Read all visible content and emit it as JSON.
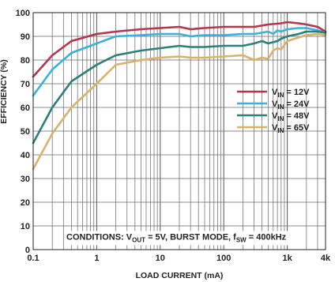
{
  "chart_data": {
    "type": "line",
    "xlabel": "LOAD CURRENT (mA)",
    "ylabel": "EFFICIENCY (%)",
    "x_scale": "log",
    "xlim": [
      0.1,
      4000
    ],
    "ylim": [
      0,
      100
    ],
    "x_ticks": [
      0.1,
      1,
      10,
      100,
      1000,
      4000
    ],
    "x_tick_labels": [
      "0.1",
      "1",
      "10",
      "100",
      "1k",
      "4k"
    ],
    "y_ticks": [
      0,
      10,
      20,
      30,
      40,
      50,
      60,
      70,
      80,
      90,
      100
    ],
    "y_tick_labels": [
      "0",
      "10",
      "20",
      "30",
      "40",
      "50",
      "60",
      "70",
      "80",
      "90",
      "100"
    ],
    "grid": true,
    "legend_position": "right",
    "annotation": {
      "prefix": "CONDITIONS: V",
      "sub1": "OUT",
      "mid": " = 5V, BURST MODE, f",
      "sub2": "SW",
      "suffix": " = 400kHz"
    },
    "series": [
      {
        "name": "VIN = 12V",
        "legend_main": "V",
        "legend_sub": "IN",
        "legend_value": " = 12V",
        "color": "#b5344f",
        "x": [
          0.1,
          0.2,
          0.4,
          1,
          2,
          5,
          10,
          20,
          30,
          50,
          100,
          200,
          300,
          500,
          800,
          1000,
          1500,
          2000,
          3000,
          4000
        ],
        "y": [
          73,
          82,
          88,
          91,
          92,
          93,
          93.5,
          94,
          93,
          93.5,
          94,
          94,
          94,
          95,
          95.5,
          96,
          95.5,
          95,
          94,
          92
        ]
      },
      {
        "name": "VIN = 24V",
        "legend_main": "V",
        "legend_sub": "IN",
        "legend_value": " = 24V",
        "color": "#3ab0dc",
        "x": [
          0.1,
          0.2,
          0.4,
          1,
          2,
          5,
          10,
          20,
          30,
          50,
          100,
          200,
          300,
          500,
          600,
          700,
          800,
          1000,
          1500,
          2000,
          3000,
          4000
        ],
        "y": [
          65,
          76,
          83,
          87,
          90,
          90.5,
          91,
          91,
          90,
          90.5,
          90.5,
          91,
          91,
          92,
          91,
          92.5,
          92,
          93,
          93.5,
          93.5,
          92.5,
          91.5
        ]
      },
      {
        "name": "VIN = 48V",
        "legend_main": "V",
        "legend_sub": "IN",
        "legend_value": " = 48V",
        "color": "#2c7f7a",
        "x": [
          0.1,
          0.2,
          0.4,
          1,
          2,
          5,
          10,
          20,
          30,
          50,
          100,
          200,
          300,
          400,
          500,
          700,
          800,
          1000,
          1500,
          2000,
          3000,
          4000
        ],
        "y": [
          45,
          60,
          71,
          78,
          82,
          84,
          85,
          86,
          85.5,
          85.5,
          86,
          86,
          87,
          88,
          87,
          88,
          89,
          90,
          91,
          92,
          92,
          91.5
        ]
      },
      {
        "name": "VIN = 65V",
        "legend_main": "V",
        "legend_sub": "IN",
        "legend_value": " = 65V",
        "color": "#d9b16d",
        "x": [
          0.1,
          0.2,
          0.4,
          1,
          2,
          5,
          10,
          20,
          30,
          50,
          100,
          200,
          300,
          400,
          500,
          600,
          700,
          800,
          1000,
          1500,
          2000,
          3000,
          4000
        ],
        "y": [
          34,
          49,
          60,
          70,
          78,
          80,
          81,
          81.5,
          81,
          81,
          81.5,
          82,
          80,
          81,
          80.5,
          84,
          85,
          84.5,
          88,
          89.5,
          90.5,
          91,
          90.5
        ]
      }
    ]
  }
}
